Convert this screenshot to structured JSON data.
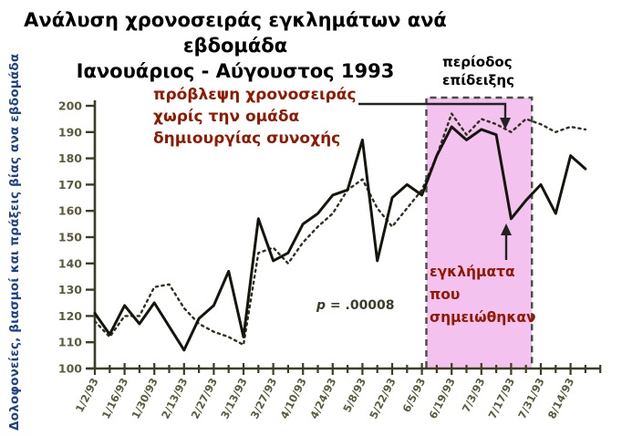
{
  "title": {
    "line1": "Ανάλυση χρονοσειράς εγκλημάτων ανά εβδομάδα",
    "line2": "Ιανουάριος - Αύγουστος 1993"
  },
  "y_axis": {
    "label": "Δολοφονείες, βιασμοί και πράξεις βίας ανα εβδομάδα",
    "min": 100,
    "max": 200,
    "step": 10
  },
  "annotations": {
    "forecast": {
      "lines": [
        "πρόβλεψη χρονοσειράς",
        "χωρίς την ομάδα",
        "δημιουργίας συνοχής"
      ],
      "color": "#931800"
    },
    "demo_period": {
      "lines": [
        "περίοδος",
        "επίδειξης"
      ],
      "color": "#000000"
    },
    "crimes": {
      "lines": [
        "εγκλήματα",
        "που",
        "σημειώθηκαν"
      ],
      "color": "#931800"
    },
    "p_value": {
      "symbol": "p",
      "rest": " = .00008"
    }
  },
  "colors": {
    "axis": "#3d3d26",
    "tick_label": "#5b5b3b",
    "actual_line": "#15150c",
    "forecast_line": "#30301e",
    "region_fill": "#f4c2ef",
    "region_border": "#4a4a4a",
    "arrow": "#222222",
    "ylabel_blue": "#1e4289"
  },
  "chart_data": {
    "type": "line",
    "x": [
      "1/2/93",
      "1/9/93",
      "1/16/93",
      "1/23/93",
      "1/30/93",
      "2/6/93",
      "2/13/93",
      "2/20/93",
      "2/27/93",
      "3/6/93",
      "3/13/93",
      "3/20/93",
      "3/27/93",
      "4/3/93",
      "4/10/93",
      "4/17/93",
      "4/24/93",
      "5/1/93",
      "5/8/93",
      "5/15/93",
      "5/22/93",
      "5/29/93",
      "6/5/93",
      "6/12/93",
      "6/19/93",
      "6/26/93",
      "7/3/93",
      "7/10/93",
      "7/17/93",
      "7/24/93",
      "7/31/93",
      "8/7/93",
      "8/14/93",
      "8/21/93"
    ],
    "x_tick_labels": [
      "1/2/93",
      "1/16/93",
      "1/30/93",
      "2/13/93",
      "2/27/93",
      "3/13/93",
      "3/27/93",
      "4/10/93",
      "4/24/93",
      "5/8/93",
      "5/22/93",
      "6/5/93",
      "6/19/93",
      "7/3/93",
      "7/17/93",
      "7/31/93",
      "8/14/93"
    ],
    "series": [
      {
        "name": "εγκλήματα που σημειώθηκαν",
        "style": "solid",
        "values": [
          121,
          113,
          124,
          117,
          125,
          116,
          107,
          119,
          124,
          137,
          112,
          157,
          141,
          144,
          155,
          159,
          166,
          168,
          187,
          141,
          165,
          170,
          166,
          181,
          192,
          187,
          191,
          189,
          157,
          164,
          170,
          159,
          181,
          176
        ]
      },
      {
        "name": "πρόβλεψη χρονοσειράς χωρίς την ομάδα δημιουργίας συνοχής",
        "style": "dotted",
        "values": [
          118,
          112,
          120,
          120,
          131,
          132,
          123,
          117,
          114,
          112,
          109,
          144,
          146,
          140,
          148,
          154,
          159,
          168,
          172,
          161,
          154,
          161,
          168,
          181,
          197,
          189,
          195,
          193,
          190,
          195,
          193,
          190,
          192,
          191
        ]
      }
    ],
    "ylim": [
      100,
      200
    ],
    "xlabel": "",
    "ylabel": "Δολοφονείες, βιασμοί και πράξεις βίας ανα εβδομάδα",
    "grid": false,
    "legend": "none",
    "highlight_region": {
      "label": "περίοδος επίδειξης",
      "x_start": "6/5/93",
      "x_end": "7/31/93",
      "start_week": 22.3,
      "end_week": 29.4
    },
    "p_value": "p = .00008"
  }
}
